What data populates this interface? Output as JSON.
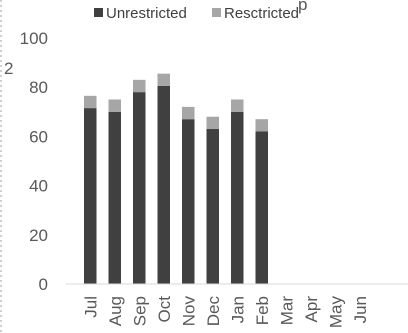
{
  "chart_data": {
    "type": "bar",
    "stacked": true,
    "categories": [
      "Jul",
      "Aug",
      "Sep",
      "Oct",
      "Nov",
      "Dec",
      "Jan",
      "Feb",
      "Mar",
      "Apr",
      "May",
      "Jun"
    ],
    "series": [
      {
        "name": "Unrestricted",
        "color": "#404040",
        "values": [
          71.5,
          70,
          78,
          80.5,
          67,
          63,
          70,
          62,
          null,
          null,
          null,
          null
        ]
      },
      {
        "name": "Resctricted",
        "color": "#a6a6a6",
        "values": [
          5,
          5,
          5,
          5,
          5,
          5,
          5,
          5,
          null,
          null,
          null,
          null
        ]
      }
    ],
    "ylim": [
      0,
      100
    ],
    "yticks": [
      0,
      20,
      40,
      60,
      80,
      100
    ],
    "grid": false,
    "legend": "top"
  },
  "cut_text": {
    "top": "p",
    "left": "2"
  }
}
